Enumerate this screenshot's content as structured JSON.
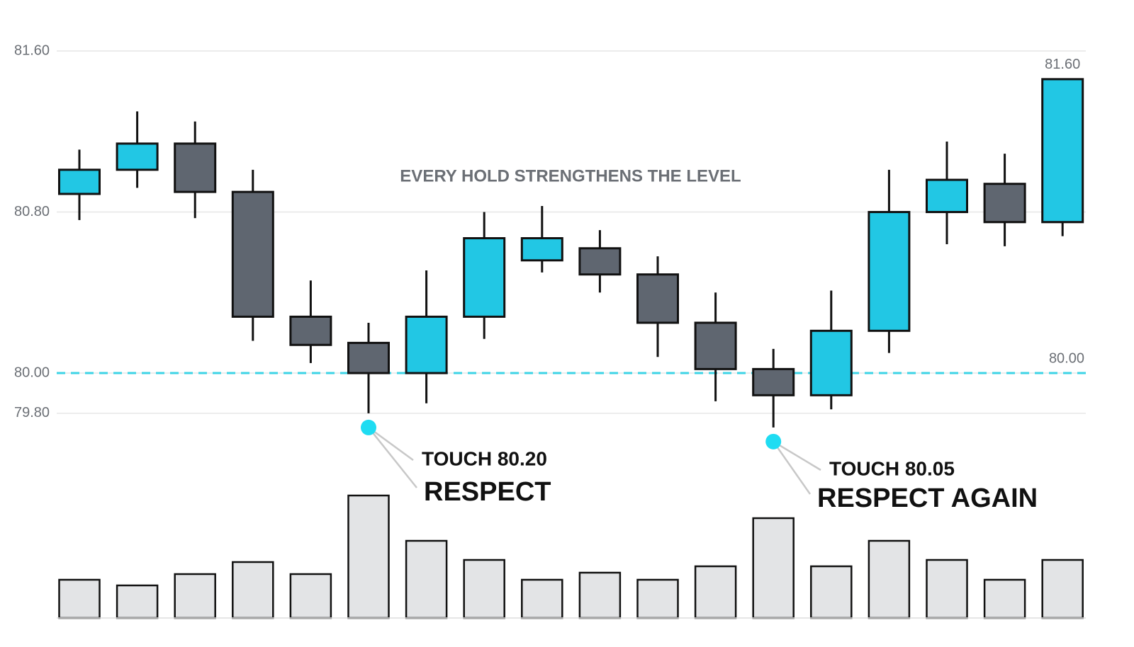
{
  "chart_data": {
    "type": "candlestick",
    "title": "EVERY HOLD STRENGTHENS THE LEVEL",
    "up_color": "#22c7e4",
    "down_color": "#5f6670",
    "volume_color": "#e3e4e6",
    "ylim": [
      79.6,
      81.7
    ],
    "yticks": [
      {
        "value": 81.6,
        "label": "81.60"
      },
      {
        "value": 80.8,
        "label": "80.80"
      },
      {
        "value": 80.0,
        "label": "80.00"
      },
      {
        "value": 79.8,
        "label": "79.80"
      }
    ],
    "grid": true,
    "open": [
      80.89,
      81.01,
      81.14,
      80.9,
      80.28,
      80.15,
      80.0,
      80.28,
      80.56,
      80.62,
      80.49,
      80.25,
      80.02,
      79.89,
      80.21,
      80.8,
      80.94,
      80.75
    ],
    "high": [
      81.11,
      81.3,
      81.25,
      81.01,
      80.46,
      80.25,
      80.51,
      80.8,
      80.83,
      80.71,
      80.58,
      80.4,
      80.12,
      80.41,
      81.01,
      81.15,
      81.09,
      81.46
    ],
    "low": [
      80.76,
      80.92,
      80.77,
      80.16,
      80.05,
      79.8,
      79.85,
      80.17,
      80.5,
      80.4,
      80.08,
      79.86,
      79.73,
      79.82,
      80.1,
      80.64,
      80.63,
      80.68
    ],
    "close": [
      81.01,
      81.14,
      80.9,
      80.28,
      80.14,
      80.0,
      80.28,
      80.67,
      80.67,
      80.49,
      80.25,
      80.02,
      79.89,
      80.21,
      80.8,
      80.96,
      80.75,
      81.46
    ],
    "volume": [
      54,
      46,
      62,
      79,
      62,
      173,
      109,
      82,
      54,
      64,
      54,
      73,
      141,
      73,
      109,
      82,
      54,
      82
    ],
    "level": {
      "value": 80.0,
      "label": "80.00",
      "color": "#3dd3e6"
    },
    "last_label": "81.60",
    "annotations": [
      {
        "touch": "TOUCH 80.20",
        "text": "RESPECT"
      },
      {
        "touch": "TOUCH 80.05",
        "text": "RESPECT AGAIN"
      }
    ]
  }
}
